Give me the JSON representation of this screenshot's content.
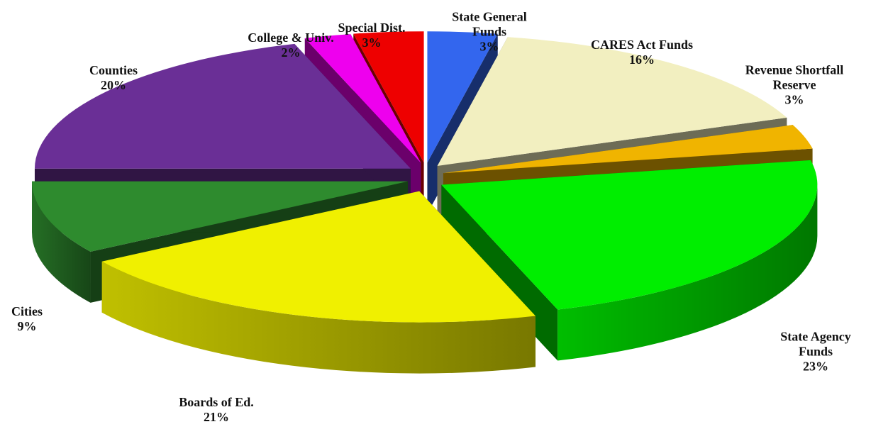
{
  "chart_data": {
    "type": "pie3d",
    "categories": [
      "State General Funds",
      "CARES Act Funds",
      "Revenue Shortfall Reserve",
      "State Agency Funds",
      "Boards of Ed.",
      "Cities",
      "Counties",
      "College & Univ.",
      "Special Dist."
    ],
    "values": [
      3,
      16,
      3,
      23,
      21,
      9,
      20,
      2,
      3
    ],
    "value_labels": [
      "3%",
      "16%",
      "3%",
      "23%",
      "21%",
      "9%",
      "20%",
      "2%",
      "3%"
    ],
    "colors": [
      "#3366ee",
      "#f2efc0",
      "#f0b400",
      "#00ee00",
      "#f0f000",
      "#2e8b2e",
      "#6a2f96",
      "#ee00ee",
      "#ee0000"
    ]
  }
}
